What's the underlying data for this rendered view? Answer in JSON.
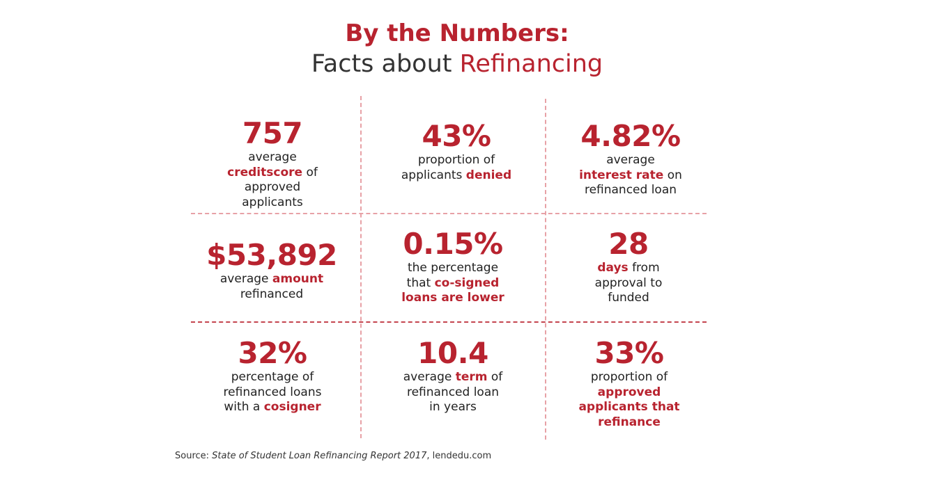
{
  "title": {
    "line1": "By the Numbers:",
    "line2_prefix": "Facts about ",
    "line2_accent": "Refinancing"
  },
  "colors": {
    "accent": "#b8232f",
    "divider": "#e7a1a6",
    "text": "#222222"
  },
  "stats": [
    {
      "value": "757",
      "d1": "average ",
      "h1": "credit",
      "d2": "",
      "h2": "score",
      "d3": " of approved applicants"
    },
    {
      "value": "43%",
      "d1": "proportion of applicants ",
      "h1": "denied",
      "d2": "",
      "h2": "",
      "d3": ""
    },
    {
      "value": "4.82%",
      "d1": "average ",
      "h1": "interest rate",
      "d2": " on refinanced loan",
      "h2": "",
      "d3": ""
    },
    {
      "value": "$53,892",
      "d1": "average ",
      "h1": "amount",
      "d2": " refinanced",
      "h2": "",
      "d3": ""
    },
    {
      "value": "0.15%",
      "d1": "the percentage that ",
      "h1": "co-signed loans are lower",
      "d2": "",
      "h2": "",
      "d3": ""
    },
    {
      "value": "28",
      "d1": "",
      "h1": "days",
      "d2": " from approval to funded",
      "h2": "",
      "d3": ""
    },
    {
      "value": "32%",
      "d1": "percentage of refinanced loans with a ",
      "h1": "cosigner",
      "d2": "",
      "h2": "",
      "d3": ""
    },
    {
      "value": "10.4",
      "d1": "average ",
      "h1": "term",
      "d2": " of refinanced loan in years",
      "h2": "",
      "d3": ""
    },
    {
      "value": "33%",
      "d1": "proportion of ",
      "h1": "approved applicants that refinance",
      "d2": "",
      "h2": "",
      "d3": ""
    }
  ],
  "source": {
    "prefix": "Source: ",
    "report": "State of Student Loan Refinancing Report 2017",
    "suffix": ", lendedu.com"
  }
}
